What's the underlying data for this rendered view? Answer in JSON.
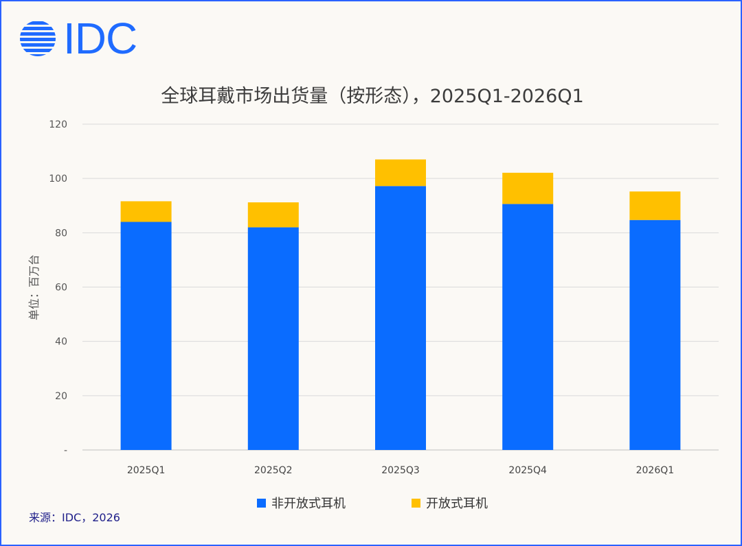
{
  "brand": {
    "logo_text": "IDC",
    "logo_color": "#1f6bff"
  },
  "source_note": "来源：IDC，2026",
  "chart_data": {
    "type": "bar",
    "stacked": true,
    "title": "全球耳戴市场出货量（按形态），2025Q1-2026Q1",
    "xlabel": "",
    "ylabel": "单位：百万台",
    "ylim": [
      0,
      120
    ],
    "yticks": [
      0,
      20,
      40,
      60,
      80,
      100,
      120
    ],
    "ytick_labels": [
      "-",
      "20",
      "40",
      "60",
      "80",
      "100",
      "120"
    ],
    "categories": [
      "2025Q1",
      "2025Q2",
      "2025Q3",
      "2025Q4",
      "2026Q1"
    ],
    "grid": true,
    "legend_position": "bottom",
    "series": [
      {
        "name": "非开放式耳机",
        "color": "#0a6cff",
        "values": [
          84.0,
          82.0,
          97.2,
          90.6,
          84.7
        ]
      },
      {
        "name": "开放式耳机",
        "color": "#ffc000",
        "values": [
          7.6,
          9.2,
          9.8,
          11.5,
          10.5
        ]
      }
    ]
  }
}
